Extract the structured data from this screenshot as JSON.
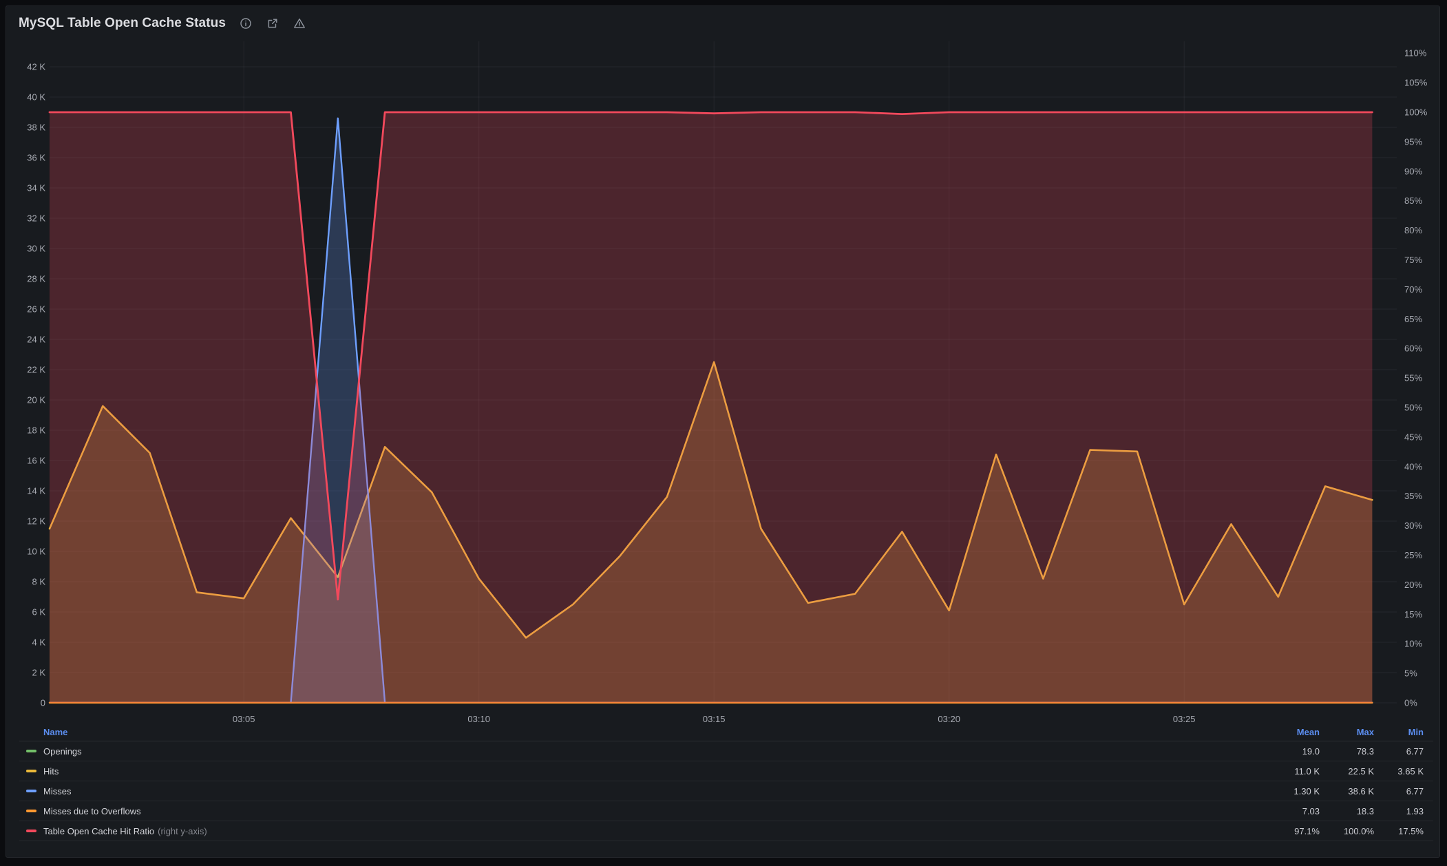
{
  "panel": {
    "title": "MySQL Table Open Cache Status",
    "header_icons": [
      "info-icon",
      "external-link-icon",
      "warning-icon"
    ]
  },
  "colors": {
    "panel_background": "#181b1f",
    "page_background": "#0b0c0f",
    "grid": "rgba(204,204,220,0.07)",
    "axis_text": "#a8abb3",
    "legend_header": "#5b8def",
    "legend_text": "#d2d3d8",
    "green": "#73BF69",
    "yellow": "#EAB839",
    "blue": "#6E9FFF",
    "orange": "#FF9830",
    "red": "#F2495C"
  },
  "chart_data": {
    "type": "line",
    "title": "MySQL Table Open Cache Status",
    "x": [
      "03:01",
      "03:02",
      "03:03",
      "03:04",
      "03:05",
      "03:06",
      "03:07",
      "03:08",
      "03:09",
      "03:10",
      "03:11",
      "03:12",
      "03:13",
      "03:14",
      "03:15",
      "03:16",
      "03:17",
      "03:18",
      "03:19",
      "03:20",
      "03:21",
      "03:22",
      "03:23",
      "03:24",
      "03:25",
      "03:26",
      "03:27",
      "03:28",
      "03:29"
    ],
    "x_axis": {
      "tick_labels": [
        "03:05",
        "03:10",
        "03:15",
        "03:20",
        "03:25"
      ],
      "tick_indices": [
        4,
        9,
        14,
        19,
        24
      ]
    },
    "left_axis": {
      "min": 0,
      "max": 42000,
      "tick_step": 2000,
      "tick_labels": [
        "0",
        "2 K",
        "4 K",
        "6 K",
        "8 K",
        "10 K",
        "12 K",
        "14 K",
        "16 K",
        "18 K",
        "20 K",
        "22 K",
        "24 K",
        "26 K",
        "28 K",
        "30 K",
        "32 K",
        "34 K",
        "36 K",
        "38 K",
        "40 K",
        "42 K"
      ]
    },
    "right_axis": {
      "min": 0,
      "max": 110,
      "tick_step": 5,
      "unit": "%",
      "tick_labels": [
        "0%",
        "5%",
        "10%",
        "15%",
        "20%",
        "25%",
        "30%",
        "35%",
        "40%",
        "45%",
        "50%",
        "55%",
        "60%",
        "65%",
        "70%",
        "75%",
        "80%",
        "85%",
        "90%",
        "95%",
        "100%",
        "105%",
        "110%"
      ]
    },
    "grid": true,
    "legend_position": "bottom-table",
    "series": [
      {
        "name": "Openings",
        "color": "#73BF69",
        "axis": "left",
        "line_width": 2,
        "values": [
          19,
          19,
          19,
          19,
          19,
          19,
          19,
          19,
          19,
          19,
          19,
          19,
          19,
          19,
          19,
          19,
          19,
          19,
          19,
          19,
          19,
          19,
          19,
          19,
          19,
          19,
          19,
          19,
          19
        ]
      },
      {
        "name": "Hits",
        "color": "#EAB839",
        "axis": "left",
        "line_width": 2.6,
        "values": [
          11500,
          19600,
          16500,
          7300,
          6900,
          12200,
          8300,
          16900,
          13900,
          8200,
          4300,
          6500,
          9700,
          13600,
          22500,
          11500,
          6600,
          7200,
          11300,
          6100,
          16400,
          8200,
          16700,
          16600,
          6500,
          11800,
          7000,
          14300,
          13400
        ]
      },
      {
        "name": "Misses",
        "color": "#6E9FFF",
        "axis": "left",
        "line_width": 2.4,
        "values": [
          7,
          7,
          7,
          7,
          7,
          7,
          38600,
          7,
          7,
          7,
          7,
          7,
          7,
          7,
          7,
          7,
          7,
          7,
          7,
          7,
          7,
          7,
          7,
          7,
          7,
          7,
          7,
          7,
          7
        ]
      },
      {
        "name": "Misses due to Overflows",
        "color": "#FF9830",
        "axis": "left",
        "line_width": 2.4,
        "values": [
          7,
          7,
          7,
          7,
          7,
          7,
          7,
          7,
          7,
          7,
          7,
          7,
          7,
          7,
          7,
          7,
          7,
          7,
          7,
          7,
          7,
          7,
          7,
          7,
          7,
          7,
          7,
          7,
          7
        ]
      },
      {
        "name": "Table Open Cache Hit Ratio",
        "name_suffix": "(right y-axis)",
        "color": "#F2495C",
        "axis": "right",
        "line_width": 2.8,
        "values": [
          100,
          100,
          100,
          100,
          100,
          100,
          17.5,
          100,
          100,
          100,
          100,
          100,
          100,
          100,
          99.8,
          100,
          100,
          100,
          99.7,
          100,
          100,
          100,
          100,
          100,
          100,
          100,
          100,
          100,
          100
        ]
      }
    ]
  },
  "legend": {
    "headers": [
      "Name",
      "Mean",
      "Max",
      "Min"
    ],
    "rows": [
      {
        "name": "Openings",
        "mean": "19.0",
        "max": "78.3",
        "min": "6.77"
      },
      {
        "name": "Hits",
        "mean": "11.0 K",
        "max": "22.5 K",
        "min": "3.65 K"
      },
      {
        "name": "Misses",
        "mean": "1.30 K",
        "max": "38.6 K",
        "min": "6.77"
      },
      {
        "name": "Misses due to Overflows",
        "mean": "7.03",
        "max": "18.3",
        "min": "1.93"
      },
      {
        "name": "Table Open Cache Hit Ratio",
        "name_suffix": "(right y-axis)",
        "mean": "97.1%",
        "max": "100.0%",
        "min": "17.5%"
      }
    ]
  }
}
